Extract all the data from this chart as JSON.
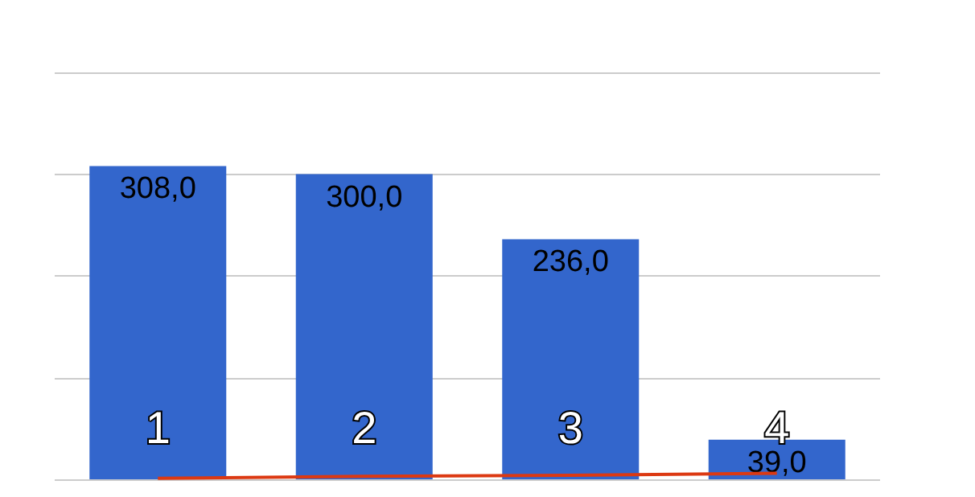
{
  "chart_data": {
    "type": "bar",
    "categories": [
      "1",
      "2",
      "3",
      "4"
    ],
    "series": [
      {
        "color": "#3366cc",
        "values": [
          308,
          300,
          236,
          39
        ],
        "value_labels": [
          "308,0",
          "300,0",
          "236,0",
          "39,0"
        ]
      },
      {
        "type": "line",
        "color": "#dc3912",
        "values": [
          1,
          3,
          4,
          6
        ]
      }
    ],
    "ylim": [
      0,
      400
    ],
    "yticks": [
      {
        "value": 0,
        "label": null
      },
      {
        "value": 100,
        "label": null
      },
      {
        "value": 200,
        "label": null
      },
      {
        "value": 300,
        "label": null
      },
      {
        "value": 400,
        "label": null
      }
    ],
    "tick_labels": "x",
    "grid": "y",
    "marker": "none"
  }
}
